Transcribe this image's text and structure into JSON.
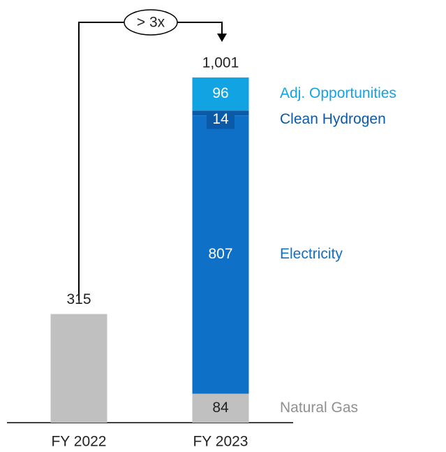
{
  "chart_data": {
    "type": "stacked_bar",
    "categories": [
      "FY 2022",
      "FY 2023"
    ],
    "series": [
      {
        "color": "#c0c0c0",
        "values": [
          315,
          null
        ]
      },
      {
        "name": "Natural Gas",
        "color": "#c0c0c0",
        "text_color": "#909090",
        "values": [
          null,
          84
        ]
      },
      {
        "name": "Electricity",
        "color": "#0f70c8",
        "text_color": "#0f70c8",
        "values": [
          null,
          807
        ]
      },
      {
        "name": "Clean Hydrogen",
        "color": "#0a5aa8",
        "text_color": "#0a5aa8",
        "values": [
          null,
          14
        ]
      },
      {
        "name": "Adj. Opportunities",
        "color": "#12a3e2",
        "text_color": "#12a3e2",
        "values": [
          null,
          96
        ]
      }
    ],
    "totals": [
      315,
      1001
    ],
    "totals_labels": [
      "315",
      "1,001"
    ],
    "annotation": "> 3x",
    "ylim": [
      0,
      1100
    ]
  }
}
